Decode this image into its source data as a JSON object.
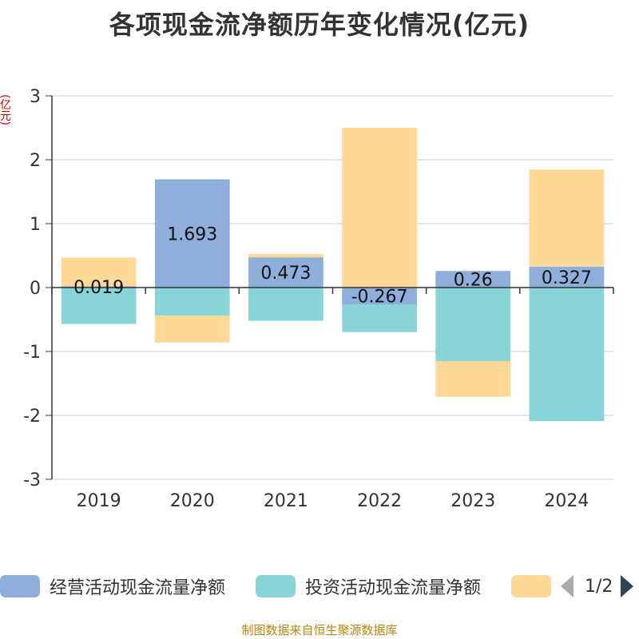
{
  "title": "各项现金流净额历年变化情况(亿元)",
  "unit_label": "(亿元)",
  "footer": "制图数据来自恒生聚源数据库",
  "legend": {
    "pager_text": "1/2"
  },
  "colors": {
    "operating": "#8eaedc",
    "investing": "#87d5d7",
    "financing": "#ffd895",
    "axis": "#333333",
    "grid": "#cccccc",
    "footer": "#b8860b"
  },
  "chart_data": {
    "type": "bar",
    "stacked": true,
    "categories": [
      "2019",
      "2020",
      "2021",
      "2022",
      "2023",
      "2024"
    ],
    "ylim": [
      -3,
      3
    ],
    "yticks": [
      -3,
      -2,
      -1,
      0,
      1,
      2,
      3
    ],
    "grid": true,
    "legend_position": "bottom",
    "series": [
      {
        "name": "经营活动现金流量净额",
        "values": [
          0.019,
          1.693,
          0.473,
          -0.267,
          0.26,
          0.327
        ],
        "labels": [
          "0.019",
          "1.693",
          "0.473",
          "-0.267",
          "0.26",
          "0.327"
        ]
      },
      {
        "name": "投资活动现金流量净额",
        "values": [
          -0.57,
          -0.44,
          -0.52,
          -0.43,
          -1.15,
          -2.09
        ]
      },
      {
        "name": "",
        "values": [
          0.45,
          -0.42,
          0.05,
          2.5,
          -0.56,
          1.52
        ]
      }
    ]
  }
}
